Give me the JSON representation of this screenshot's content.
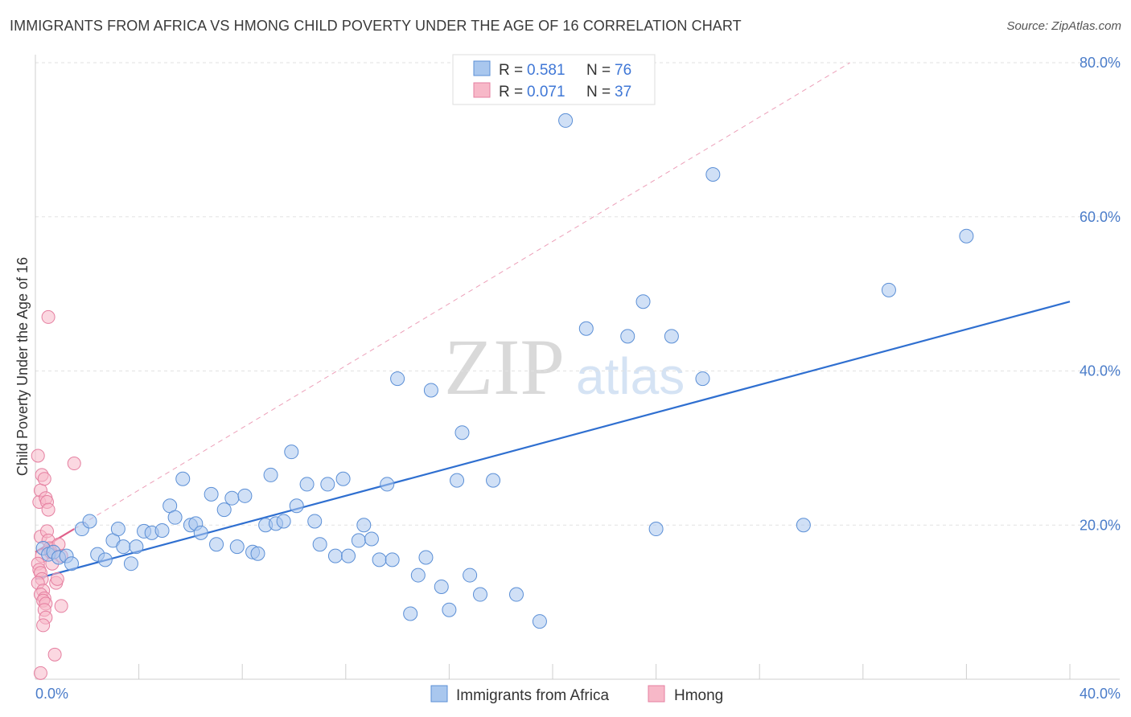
{
  "title": "IMMIGRANTS FROM AFRICA VS HMONG CHILD POVERTY UNDER THE AGE OF 16 CORRELATION CHART",
  "source": "Source: ZipAtlas.com",
  "watermark": {
    "zip": "ZIP",
    "atlas": "atlas"
  },
  "colors": {
    "blue_fill": "#a9c7ee",
    "blue_stroke": "#5b8fd6",
    "blue_line": "#2f6fd0",
    "pink_fill": "#f7b8c8",
    "pink_stroke": "#e57fa0",
    "pink_line": "#e0608a",
    "grid": "#e2e2e2",
    "tick_text": "#4a7cc9"
  },
  "legend": {
    "rows": [
      {
        "r_label": "R = ",
        "r_value": "0.581",
        "n_label": "N = ",
        "n_value": "76"
      },
      {
        "r_label": "R = ",
        "r_value": "0.071",
        "n_label": "N = ",
        "n_value": "37"
      }
    ]
  },
  "bottom_legend": [
    "Immigrants from Africa",
    "Hmong"
  ],
  "chart_data": {
    "type": "scatter",
    "title": "IMMIGRANTS FROM AFRICA VS HMONG CHILD POVERTY UNDER THE AGE OF 16 CORRELATION CHART",
    "xlabel": "",
    "ylabel": "Child Poverty Under the Age of 16",
    "xlim": [
      0,
      40
    ],
    "ylim": [
      0,
      80
    ],
    "x_tick_labels": [
      "0.0%",
      "40.0%"
    ],
    "y_ticks": [
      20,
      40,
      60,
      80
    ],
    "y_tick_labels": [
      "20.0%",
      "40.0%",
      "60.0%",
      "80.0%"
    ],
    "series": [
      {
        "name": "Immigrants from Africa",
        "R": 0.581,
        "N": 76,
        "trend": {
          "x": [
            0,
            40
          ],
          "y": [
            13.0,
            49.0
          ],
          "style": "solid"
        },
        "points": [
          [
            0.3,
            17.0
          ],
          [
            0.5,
            16.2
          ],
          [
            0.7,
            16.5
          ],
          [
            0.9,
            15.8
          ],
          [
            1.2,
            16.0
          ],
          [
            1.4,
            15.0
          ],
          [
            1.8,
            19.5
          ],
          [
            2.1,
            20.5
          ],
          [
            2.4,
            16.2
          ],
          [
            2.7,
            15.5
          ],
          [
            3.0,
            18.0
          ],
          [
            3.2,
            19.5
          ],
          [
            3.4,
            17.2
          ],
          [
            3.7,
            15.0
          ],
          [
            3.9,
            17.2
          ],
          [
            4.2,
            19.2
          ],
          [
            4.5,
            19.0
          ],
          [
            4.9,
            19.3
          ],
          [
            5.2,
            22.5
          ],
          [
            5.4,
            21.0
          ],
          [
            5.7,
            26.0
          ],
          [
            6.0,
            20.0
          ],
          [
            6.2,
            20.2
          ],
          [
            6.4,
            19.0
          ],
          [
            6.8,
            24.0
          ],
          [
            7.0,
            17.5
          ],
          [
            7.3,
            22.0
          ],
          [
            7.6,
            23.5
          ],
          [
            7.8,
            17.2
          ],
          [
            8.1,
            23.8
          ],
          [
            8.4,
            16.5
          ],
          [
            8.6,
            16.3
          ],
          [
            8.9,
            20.0
          ],
          [
            9.1,
            26.5
          ],
          [
            9.3,
            20.2
          ],
          [
            9.6,
            20.5
          ],
          [
            9.9,
            29.5
          ],
          [
            10.1,
            22.5
          ],
          [
            10.5,
            25.3
          ],
          [
            10.8,
            20.5
          ],
          [
            11.0,
            17.5
          ],
          [
            11.3,
            25.3
          ],
          [
            11.6,
            16.0
          ],
          [
            11.9,
            26.0
          ],
          [
            12.1,
            16.0
          ],
          [
            12.5,
            18.0
          ],
          [
            12.7,
            20.0
          ],
          [
            13.0,
            18.2
          ],
          [
            13.3,
            15.5
          ],
          [
            13.6,
            25.3
          ],
          [
            13.8,
            15.5
          ],
          [
            14.0,
            39.0
          ],
          [
            14.5,
            8.5
          ],
          [
            14.8,
            13.5
          ],
          [
            15.1,
            15.8
          ],
          [
            15.3,
            37.5
          ],
          [
            15.7,
            12.0
          ],
          [
            16.0,
            9.0
          ],
          [
            16.3,
            25.8
          ],
          [
            16.5,
            32.0
          ],
          [
            16.8,
            13.5
          ],
          [
            17.2,
            11.0
          ],
          [
            17.7,
            25.8
          ],
          [
            18.6,
            11.0
          ],
          [
            19.5,
            7.5
          ],
          [
            20.5,
            72.5
          ],
          [
            21.3,
            45.5
          ],
          [
            22.9,
            44.5
          ],
          [
            23.5,
            49.0
          ],
          [
            24.0,
            19.5
          ],
          [
            24.6,
            44.5
          ],
          [
            25.8,
            39.0
          ],
          [
            26.2,
            65.5
          ],
          [
            29.7,
            20.0
          ],
          [
            33.0,
            50.5
          ],
          [
            36.0,
            57.5
          ]
        ]
      },
      {
        "name": "Hmong",
        "R": 0.071,
        "N": 37,
        "trend": {
          "x": [
            0,
            1.5
          ],
          "y": [
            16.5,
            19.5
          ],
          "style": "solid",
          "extension": {
            "x": [
              1.5,
              31.5
            ],
            "y": [
              19.5,
              80.0
            ],
            "style": "dashed"
          }
        },
        "points": [
          [
            0.1,
            29.0
          ],
          [
            0.15,
            23.0
          ],
          [
            0.2,
            24.5
          ],
          [
            0.2,
            18.5
          ],
          [
            0.25,
            16.0
          ],
          [
            0.1,
            15.0
          ],
          [
            0.15,
            14.2
          ],
          [
            0.2,
            13.8
          ],
          [
            0.25,
            13.0
          ],
          [
            0.1,
            12.5
          ],
          [
            0.3,
            11.5
          ],
          [
            0.2,
            11.0
          ],
          [
            0.35,
            10.5
          ],
          [
            0.3,
            10.2
          ],
          [
            0.4,
            9.8
          ],
          [
            0.35,
            9.0
          ],
          [
            0.4,
            8.0
          ],
          [
            0.3,
            7.0
          ],
          [
            0.2,
            0.8
          ],
          [
            0.25,
            26.5
          ],
          [
            0.35,
            26.0
          ],
          [
            0.4,
            23.5
          ],
          [
            0.45,
            23.0
          ],
          [
            0.5,
            22.0
          ],
          [
            0.45,
            19.2
          ],
          [
            0.5,
            18.0
          ],
          [
            0.55,
            17.0
          ],
          [
            0.6,
            16.5
          ],
          [
            0.65,
            15.0
          ],
          [
            0.8,
            12.5
          ],
          [
            0.85,
            13.0
          ],
          [
            0.9,
            17.5
          ],
          [
            1.0,
            16.0
          ],
          [
            1.0,
            9.5
          ],
          [
            0.75,
            3.2
          ],
          [
            1.5,
            28.0
          ],
          [
            0.5,
            47.0
          ]
        ]
      }
    ]
  }
}
